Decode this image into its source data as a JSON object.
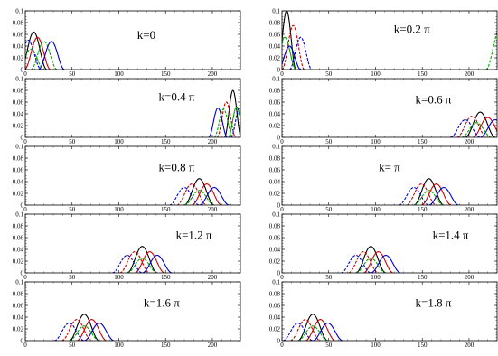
{
  "chart_data": [
    {
      "type": "line",
      "label": "k=0",
      "x_ticks": [
        0,
        50,
        100,
        150,
        200
      ],
      "y_ticks": [
        "0",
        "0.02",
        "0.04",
        "0.06",
        "0.08",
        "0.1"
      ],
      "xlim": [
        0,
        230
      ],
      "ylim": [
        0,
        0.1
      ],
      "peaks": [
        {
          "center": 9,
          "height": 0.064,
          "width": 14,
          "color": "#000000"
        },
        {
          "center": 3,
          "height": 0.05,
          "width": 14,
          "color": "#0000cc"
        },
        {
          "center": 13,
          "height": 0.055,
          "width": 14,
          "color": "#cc0000"
        },
        {
          "center": 20,
          "height": 0.048,
          "width": 14,
          "color": "#00aa00"
        },
        {
          "center": 28,
          "height": 0.048,
          "width": 14,
          "color": "#0000cc"
        },
        {
          "center": 6,
          "height": 0.035,
          "width": 14,
          "color": "#00aa00"
        }
      ]
    },
    {
      "type": "line",
      "label": "k=0.2 π",
      "x_ticks": [
        0,
        50,
        100,
        150,
        200
      ],
      "y_ticks": [
        "0",
        "0.02",
        "0.04",
        "0.06",
        "0.08",
        "0.1"
      ],
      "xlim": [
        0,
        230
      ],
      "ylim": [
        0,
        0.1
      ],
      "peaks": [
        {
          "center": 5,
          "height": 0.1,
          "width": 10,
          "color": "#000000"
        },
        {
          "center": 12,
          "height": 0.075,
          "width": 12,
          "color": "#cc0000"
        },
        {
          "center": 3,
          "height": 0.055,
          "width": 12,
          "color": "#00aa00"
        },
        {
          "center": 20,
          "height": 0.055,
          "width": 12,
          "color": "#0000cc"
        },
        {
          "center": 8,
          "height": 0.04,
          "width": 12,
          "color": "#0000cc"
        },
        {
          "center": 233,
          "height": 0.07,
          "width": 15,
          "color": "#00aa00"
        }
      ]
    },
    {
      "type": "line",
      "label": "k=0.4 π",
      "x_ticks": [
        0,
        50,
        100,
        150,
        200
      ],
      "y_ticks": [
        "0",
        "0.02",
        "0.04",
        "0.06",
        "0.08",
        "0.1"
      ],
      "xlim": [
        0,
        230
      ],
      "ylim": [
        0,
        0.1
      ],
      "peaks": [
        {
          "center": 222,
          "height": 0.08,
          "width": 9,
          "color": "#000000"
        },
        {
          "center": 215,
          "height": 0.06,
          "width": 10,
          "color": "#cc0000"
        },
        {
          "center": 206,
          "height": 0.05,
          "width": 10,
          "color": "#0000cc"
        },
        {
          "center": 212,
          "height": 0.048,
          "width": 10,
          "color": "#00aa00"
        },
        {
          "center": 226,
          "height": 0.052,
          "width": 9,
          "color": "#00aa00"
        },
        {
          "center": 229,
          "height": 0.05,
          "width": 9,
          "color": "#0000cc"
        }
      ]
    },
    {
      "type": "line",
      "label": "k=0.6 π",
      "x_ticks": [
        0,
        50,
        100,
        150,
        200
      ],
      "y_ticks": [
        "0",
        "0.02",
        "0.04",
        "0.06",
        "0.08",
        "0.1"
      ],
      "xlim": [
        0,
        230
      ],
      "ylim": [
        0,
        0.1
      ],
      "peaks": [
        {
          "center": 212,
          "height": 0.043,
          "width": 16,
          "color": "#000000"
        },
        {
          "center": 203,
          "height": 0.036,
          "width": 16,
          "color": "#cc0000"
        },
        {
          "center": 220,
          "height": 0.034,
          "width": 16,
          "color": "#cc0000"
        },
        {
          "center": 196,
          "height": 0.03,
          "width": 16,
          "color": "#0000cc"
        },
        {
          "center": 228,
          "height": 0.03,
          "width": 16,
          "color": "#0000cc"
        },
        {
          "center": 208,
          "height": 0.025,
          "width": 16,
          "color": "#00aa00"
        }
      ]
    },
    {
      "type": "line",
      "label": "k=0.8 π",
      "x_ticks": [
        0,
        50,
        100,
        150,
        200
      ],
      "y_ticks": [
        "0",
        "0.02",
        "0.04",
        "0.06",
        "0.08",
        "0.1"
      ],
      "xlim": [
        0,
        230
      ],
      "ylim": [
        0,
        0.1
      ],
      "peaks": [
        {
          "center": 186,
          "height": 0.045,
          "width": 16,
          "color": "#000000"
        },
        {
          "center": 178,
          "height": 0.036,
          "width": 16,
          "color": "#cc0000"
        },
        {
          "center": 194,
          "height": 0.036,
          "width": 16,
          "color": "#cc0000"
        },
        {
          "center": 170,
          "height": 0.03,
          "width": 16,
          "color": "#0000cc"
        },
        {
          "center": 202,
          "height": 0.03,
          "width": 16,
          "color": "#0000cc"
        },
        {
          "center": 186,
          "height": 0.025,
          "width": 16,
          "color": "#00aa00"
        }
      ]
    },
    {
      "type": "line",
      "label": "k= π",
      "x_ticks": [
        0,
        50,
        100,
        150,
        200
      ],
      "y_ticks": [
        "0",
        "0.02",
        "0.04",
        "0.06",
        "0.08",
        "0.1"
      ],
      "xlim": [
        0,
        230
      ],
      "ylim": [
        0,
        0.1
      ],
      "peaks": [
        {
          "center": 157,
          "height": 0.045,
          "width": 16,
          "color": "#000000"
        },
        {
          "center": 149,
          "height": 0.036,
          "width": 16,
          "color": "#cc0000"
        },
        {
          "center": 165,
          "height": 0.036,
          "width": 16,
          "color": "#cc0000"
        },
        {
          "center": 141,
          "height": 0.03,
          "width": 16,
          "color": "#0000cc"
        },
        {
          "center": 173,
          "height": 0.03,
          "width": 16,
          "color": "#0000cc"
        },
        {
          "center": 157,
          "height": 0.025,
          "width": 16,
          "color": "#00aa00"
        }
      ]
    },
    {
      "type": "line",
      "label": "k=1.2 π",
      "x_ticks": [
        0,
        50,
        100,
        150,
        200
      ],
      "y_ticks": [
        "0",
        "0.02",
        "0.04",
        "0.06",
        "0.08",
        "0.1"
      ],
      "xlim": [
        0,
        230
      ],
      "ylim": [
        0,
        0.1
      ],
      "peaks": [
        {
          "center": 125,
          "height": 0.045,
          "width": 16,
          "color": "#000000"
        },
        {
          "center": 117,
          "height": 0.036,
          "width": 16,
          "color": "#cc0000"
        },
        {
          "center": 133,
          "height": 0.036,
          "width": 16,
          "color": "#cc0000"
        },
        {
          "center": 109,
          "height": 0.03,
          "width": 16,
          "color": "#0000cc"
        },
        {
          "center": 141,
          "height": 0.03,
          "width": 16,
          "color": "#0000cc"
        },
        {
          "center": 125,
          "height": 0.025,
          "width": 16,
          "color": "#00aa00"
        }
      ]
    },
    {
      "type": "line",
      "label": "k=1.4 π",
      "x_ticks": [
        0,
        50,
        100,
        150,
        200
      ],
      "y_ticks": [
        "0",
        "0.02",
        "0.04",
        "0.06",
        "0.08",
        "0.1"
      ],
      "xlim": [
        0,
        230
      ],
      "ylim": [
        0,
        0.1
      ],
      "peaks": [
        {
          "center": 95,
          "height": 0.045,
          "width": 16,
          "color": "#000000"
        },
        {
          "center": 87,
          "height": 0.036,
          "width": 16,
          "color": "#cc0000"
        },
        {
          "center": 103,
          "height": 0.036,
          "width": 16,
          "color": "#cc0000"
        },
        {
          "center": 79,
          "height": 0.03,
          "width": 16,
          "color": "#0000cc"
        },
        {
          "center": 111,
          "height": 0.03,
          "width": 16,
          "color": "#0000cc"
        },
        {
          "center": 95,
          "height": 0.025,
          "width": 16,
          "color": "#00aa00"
        }
      ]
    },
    {
      "type": "line",
      "label": "k=1.6 π",
      "x_ticks": [
        0,
        50,
        100,
        150,
        200
      ],
      "y_ticks": [
        "0",
        "0.02",
        "0.04",
        "0.06",
        "0.08",
        "0.1"
      ],
      "xlim": [
        0,
        230
      ],
      "ylim": [
        0,
        0.1
      ],
      "peaks": [
        {
          "center": 63,
          "height": 0.045,
          "width": 16,
          "color": "#000000"
        },
        {
          "center": 55,
          "height": 0.036,
          "width": 16,
          "color": "#cc0000"
        },
        {
          "center": 71,
          "height": 0.036,
          "width": 16,
          "color": "#cc0000"
        },
        {
          "center": 47,
          "height": 0.03,
          "width": 16,
          "color": "#0000cc"
        },
        {
          "center": 79,
          "height": 0.03,
          "width": 16,
          "color": "#0000cc"
        },
        {
          "center": 63,
          "height": 0.025,
          "width": 16,
          "color": "#00aa00"
        }
      ]
    },
    {
      "type": "line",
      "label": "k=1.8 π",
      "x_ticks": [
        0,
        50,
        100,
        150,
        200
      ],
      "y_ticks": [
        "0",
        "0.02",
        "0.04",
        "0.06",
        "0.08",
        "0.1"
      ],
      "xlim": [
        0,
        230
      ],
      "ylim": [
        0,
        0.1
      ],
      "peaks": [
        {
          "center": 33,
          "height": 0.045,
          "width": 16,
          "color": "#000000"
        },
        {
          "center": 25,
          "height": 0.036,
          "width": 16,
          "color": "#cc0000"
        },
        {
          "center": 41,
          "height": 0.036,
          "width": 16,
          "color": "#cc0000"
        },
        {
          "center": 17,
          "height": 0.03,
          "width": 16,
          "color": "#0000cc"
        },
        {
          "center": 49,
          "height": 0.03,
          "width": 16,
          "color": "#0000cc"
        },
        {
          "center": 33,
          "height": 0.025,
          "width": 16,
          "color": "#00aa00"
        }
      ]
    }
  ]
}
